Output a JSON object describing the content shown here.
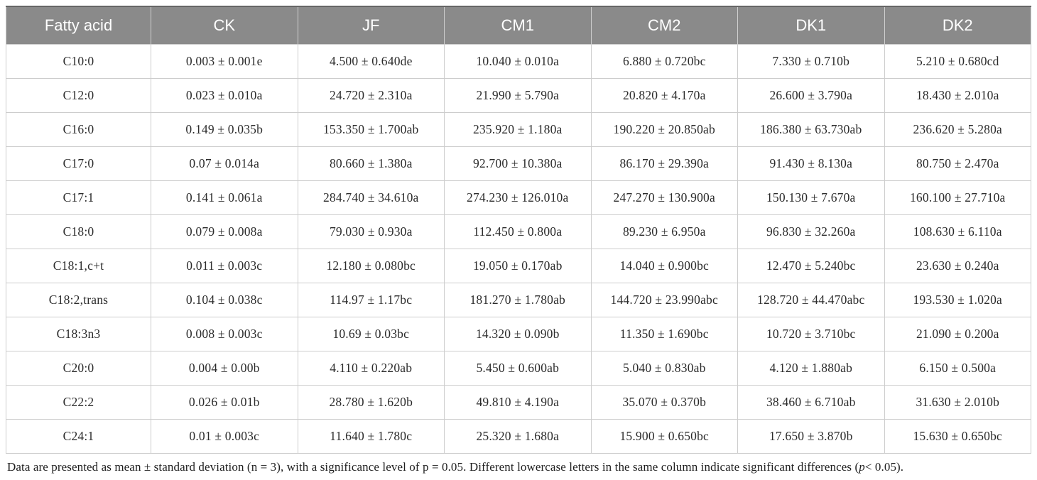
{
  "table": {
    "columns": [
      "Fatty acid",
      "CK",
      "JF",
      "CM1",
      "CM2",
      "DK1",
      "DK2"
    ],
    "rows": [
      {
        "label": "C10:0",
        "values": [
          "0.003 ± 0.001e",
          "4.500 ± 0.640de",
          "10.040 ± 0.010a",
          "6.880 ± 0.720bc",
          "7.330 ± 0.710b",
          "5.210 ± 0.680cd"
        ]
      },
      {
        "label": "C12:0",
        "values": [
          "0.023 ± 0.010a",
          "24.720 ± 2.310a",
          "21.990 ± 5.790a",
          "20.820 ± 4.170a",
          "26.600 ± 3.790a",
          "18.430 ± 2.010a"
        ]
      },
      {
        "label": "C16:0",
        "values": [
          "0.149 ± 0.035b",
          "153.350 ± 1.700ab",
          "235.920 ± 1.180a",
          "190.220 ± 20.850ab",
          "186.380 ± 63.730ab",
          "236.620 ± 5.280a"
        ]
      },
      {
        "label": "C17:0",
        "values": [
          "0.07 ± 0.014a",
          "80.660 ± 1.380a",
          "92.700 ± 10.380a",
          "86.170 ± 29.390a",
          "91.430 ± 8.130a",
          "80.750 ± 2.470a"
        ]
      },
      {
        "label": "C17:1",
        "values": [
          "0.141 ± 0.061a",
          "284.740 ± 34.610a",
          "274.230 ± 126.010a",
          "247.270 ± 130.900a",
          "150.130 ± 7.670a",
          "160.100 ± 27.710a"
        ]
      },
      {
        "label": "C18:0",
        "values": [
          "0.079 ± 0.008a",
          "79.030 ± 0.930a",
          "112.450 ± 0.800a",
          "89.230 ± 6.950a",
          "96.830 ± 32.260a",
          "108.630 ± 6.110a"
        ]
      },
      {
        "label": "C18:1,c+t",
        "values": [
          "0.011 ± 0.003c",
          "12.180 ± 0.080bc",
          "19.050 ± 0.170ab",
          "14.040 ± 0.900bc",
          "12.470 ± 5.240bc",
          "23.630 ± 0.240a"
        ]
      },
      {
        "label": "C18:2,trans",
        "values": [
          "0.104 ± 0.038c",
          "114.97 ± 1.17bc",
          "181.270 ± 1.780ab",
          "144.720 ± 23.990abc",
          "128.720 ± 44.470abc",
          "193.530 ± 1.020a"
        ]
      },
      {
        "label": "C18:3n3",
        "values": [
          "0.008 ± 0.003c",
          "10.69 ± 0.03bc",
          "14.320 ± 0.090b",
          "11.350 ± 1.690bc",
          "10.720 ± 3.710bc",
          "21.090 ± 0.200a"
        ]
      },
      {
        "label": "C20:0",
        "values": [
          "0.004 ± 0.00b",
          "4.110 ± 0.220ab",
          "5.450 ± 0.600ab",
          "5.040 ± 0.830ab",
          "4.120 ± 1.880ab",
          "6.150 ± 0.500a"
        ]
      },
      {
        "label": "C22:2",
        "values": [
          "0.026 ± 0.01b",
          "28.780 ± 1.620b",
          "49.810 ± 4.190a",
          "35.070 ± 0.370b",
          "38.460 ± 6.710ab",
          "31.630 ± 2.010b"
        ]
      },
      {
        "label": "C24:1",
        "values": [
          "0.01 ± 0.003c",
          "11.640 ± 1.780c",
          "25.320 ± 1.680a",
          "15.900 ± 0.650bc",
          "17.650 ± 3.870b",
          "15.630 ± 0.650bc"
        ]
      }
    ]
  },
  "footnote": {
    "part1": "Data are presented as mean ± standard deviation (n = 3), with a significance level of p = 0.05. Different lowercase letters in the same column indicate significant differences (",
    "italic_p": "p",
    "part2": "< 0.05)."
  },
  "colors": {
    "header_bg": "#8a8a8a",
    "header_text": "#ffffff",
    "cell_border": "#cdcdcd",
    "body_text": "#2b2b2b"
  }
}
